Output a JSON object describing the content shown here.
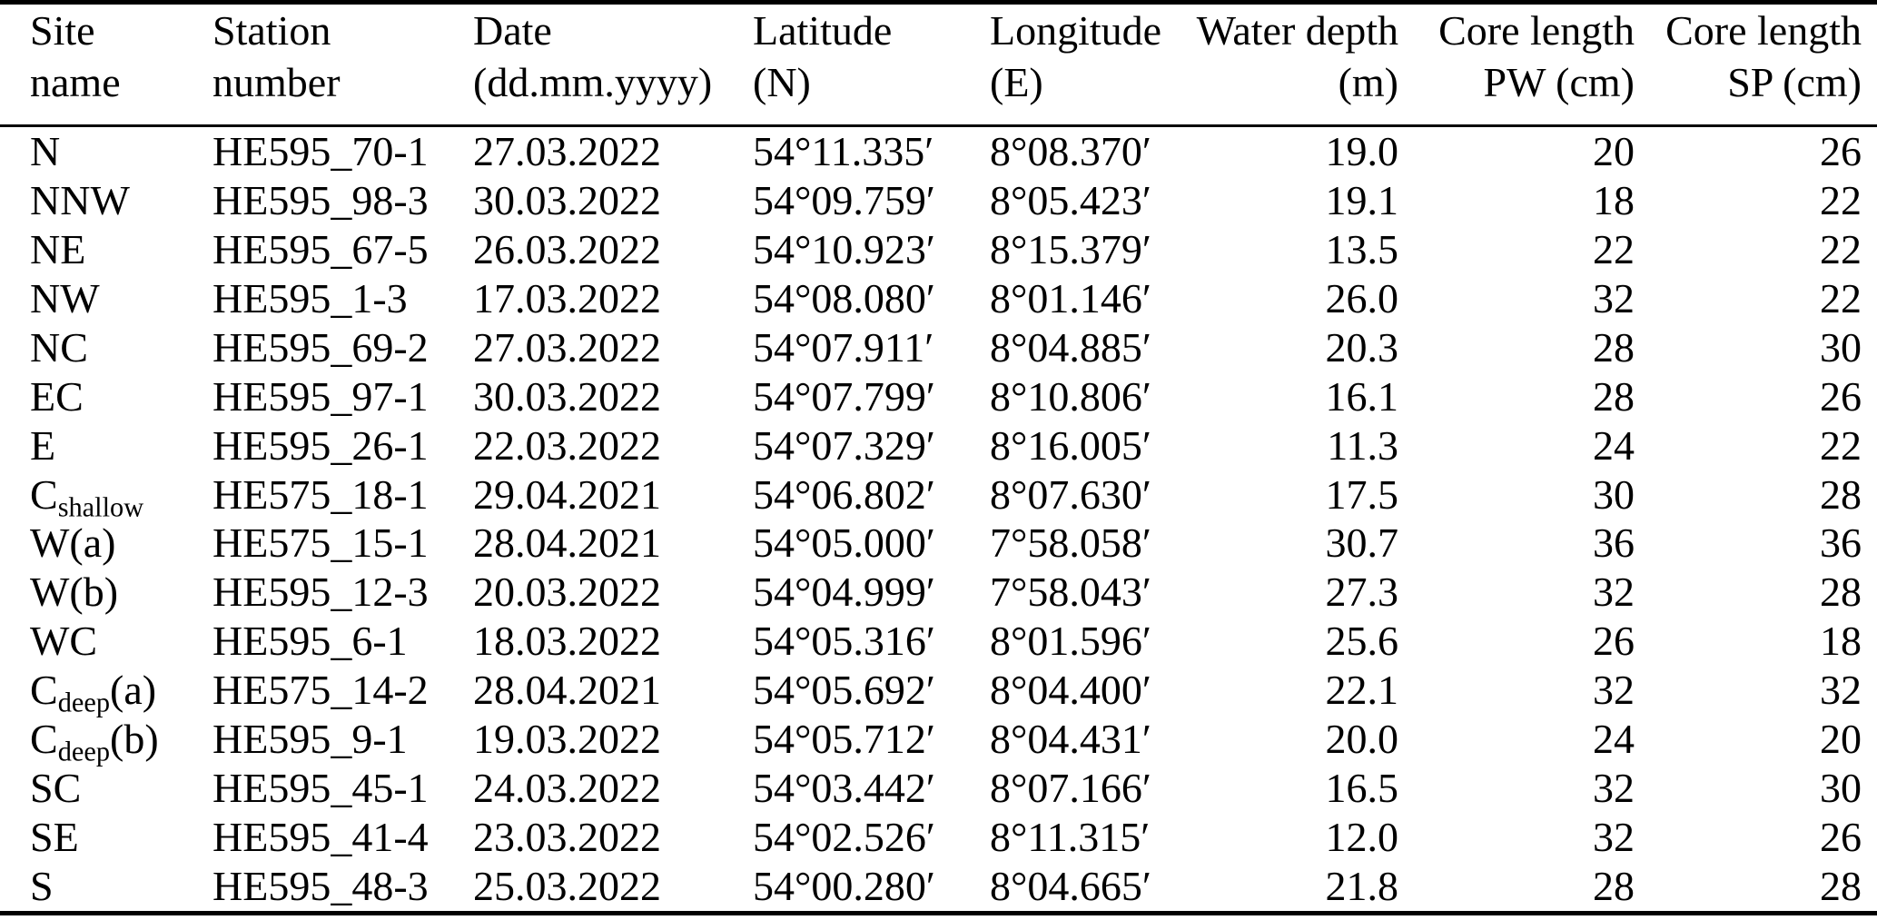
{
  "table": {
    "columns": [
      {
        "id": "site",
        "line1": "Site",
        "line2": "name",
        "align": "left"
      },
      {
        "id": "station",
        "line1": "Station",
        "line2": "number",
        "align": "left"
      },
      {
        "id": "date",
        "line1": "Date",
        "line2": "(dd.mm.yyyy)",
        "align": "left"
      },
      {
        "id": "latitude",
        "line1": "Latitude",
        "line2": "(N)",
        "align": "left"
      },
      {
        "id": "longitude",
        "line1": "Longitude",
        "line2": "(E)",
        "align": "left"
      },
      {
        "id": "water_depth",
        "line1": "Water depth",
        "line2": "(m)",
        "align": "right"
      },
      {
        "id": "core_length_pw",
        "line1": "Core length",
        "line2": "PW (cm)",
        "align": "right"
      },
      {
        "id": "core_length_sp",
        "line1": "Core length",
        "line2": "SP (cm)",
        "align": "right"
      }
    ],
    "rows": [
      {
        "site": {
          "pre": "N",
          "sub": "",
          "post": ""
        },
        "station": "HE595_70-1",
        "date": "27.03.2022",
        "latitude": "54°11.335′",
        "longitude": "8°08.370′",
        "water_depth": "19.0",
        "core_length_pw": "20",
        "core_length_sp": "26"
      },
      {
        "site": {
          "pre": "NNW",
          "sub": "",
          "post": ""
        },
        "station": "HE595_98-3",
        "date": "30.03.2022",
        "latitude": "54°09.759′",
        "longitude": "8°05.423′",
        "water_depth": "19.1",
        "core_length_pw": "18",
        "core_length_sp": "22"
      },
      {
        "site": {
          "pre": "NE",
          "sub": "",
          "post": ""
        },
        "station": "HE595_67-5",
        "date": "26.03.2022",
        "latitude": "54°10.923′",
        "longitude": "8°15.379′",
        "water_depth": "13.5",
        "core_length_pw": "22",
        "core_length_sp": "22"
      },
      {
        "site": {
          "pre": "NW",
          "sub": "",
          "post": ""
        },
        "station": "HE595_1-3",
        "date": "17.03.2022",
        "latitude": "54°08.080′",
        "longitude": "8°01.146′",
        "water_depth": "26.0",
        "core_length_pw": "32",
        "core_length_sp": "22"
      },
      {
        "site": {
          "pre": "NC",
          "sub": "",
          "post": ""
        },
        "station": "HE595_69-2",
        "date": "27.03.2022",
        "latitude": "54°07.911′",
        "longitude": "8°04.885′",
        "water_depth": "20.3",
        "core_length_pw": "28",
        "core_length_sp": "30"
      },
      {
        "site": {
          "pre": "EC",
          "sub": "",
          "post": ""
        },
        "station": "HE595_97-1",
        "date": "30.03.2022",
        "latitude": "54°07.799′",
        "longitude": "8°10.806′",
        "water_depth": "16.1",
        "core_length_pw": "28",
        "core_length_sp": "26"
      },
      {
        "site": {
          "pre": "E",
          "sub": "",
          "post": ""
        },
        "station": "HE595_26-1",
        "date": "22.03.2022",
        "latitude": "54°07.329′",
        "longitude": "8°16.005′",
        "water_depth": "11.3",
        "core_length_pw": "24",
        "core_length_sp": "22"
      },
      {
        "site": {
          "pre": "C",
          "sub": "shallow",
          "post": ""
        },
        "station": "HE575_18-1",
        "date": "29.04.2021",
        "latitude": "54°06.802′",
        "longitude": "8°07.630′",
        "water_depth": "17.5",
        "core_length_pw": "30",
        "core_length_sp": "28"
      },
      {
        "site": {
          "pre": "W(a)",
          "sub": "",
          "post": ""
        },
        "station": "HE575_15-1",
        "date": "28.04.2021",
        "latitude": "54°05.000′",
        "longitude": "7°58.058′",
        "water_depth": "30.7",
        "core_length_pw": "36",
        "core_length_sp": "36"
      },
      {
        "site": {
          "pre": "W(b)",
          "sub": "",
          "post": ""
        },
        "station": "HE595_12-3",
        "date": "20.03.2022",
        "latitude": "54°04.999′",
        "longitude": "7°58.043′",
        "water_depth": "27.3",
        "core_length_pw": "32",
        "core_length_sp": "28"
      },
      {
        "site": {
          "pre": "WC",
          "sub": "",
          "post": ""
        },
        "station": "HE595_6-1",
        "date": "18.03.2022",
        "latitude": "54°05.316′",
        "longitude": "8°01.596′",
        "water_depth": "25.6",
        "core_length_pw": "26",
        "core_length_sp": "18"
      },
      {
        "site": {
          "pre": "C",
          "sub": "deep",
          "post": "(a)"
        },
        "station": "HE575_14-2",
        "date": "28.04.2021",
        "latitude": "54°05.692′",
        "longitude": "8°04.400′",
        "water_depth": "22.1",
        "core_length_pw": "32",
        "core_length_sp": "32"
      },
      {
        "site": {
          "pre": "C",
          "sub": "deep",
          "post": "(b)"
        },
        "station": "HE595_9-1",
        "date": "19.03.2022",
        "latitude": "54°05.712′",
        "longitude": "8°04.431′",
        "water_depth": "20.0",
        "core_length_pw": "24",
        "core_length_sp": "20"
      },
      {
        "site": {
          "pre": "SC",
          "sub": "",
          "post": ""
        },
        "station": "HE595_45-1",
        "date": "24.03.2022",
        "latitude": "54°03.442′",
        "longitude": "8°07.166′",
        "water_depth": "16.5",
        "core_length_pw": "32",
        "core_length_sp": "30"
      },
      {
        "site": {
          "pre": "SE",
          "sub": "",
          "post": ""
        },
        "station": "HE595_41-4",
        "date": "23.03.2022",
        "latitude": "54°02.526′",
        "longitude": "8°11.315′",
        "water_depth": "12.0",
        "core_length_pw": "32",
        "core_length_sp": "26"
      },
      {
        "site": {
          "pre": "S",
          "sub": "",
          "post": ""
        },
        "station": "HE595_48-3",
        "date": "25.03.2022",
        "latitude": "54°00.280′",
        "longitude": "8°04.665′",
        "water_depth": "21.8",
        "core_length_pw": "28",
        "core_length_sp": "28"
      }
    ]
  }
}
